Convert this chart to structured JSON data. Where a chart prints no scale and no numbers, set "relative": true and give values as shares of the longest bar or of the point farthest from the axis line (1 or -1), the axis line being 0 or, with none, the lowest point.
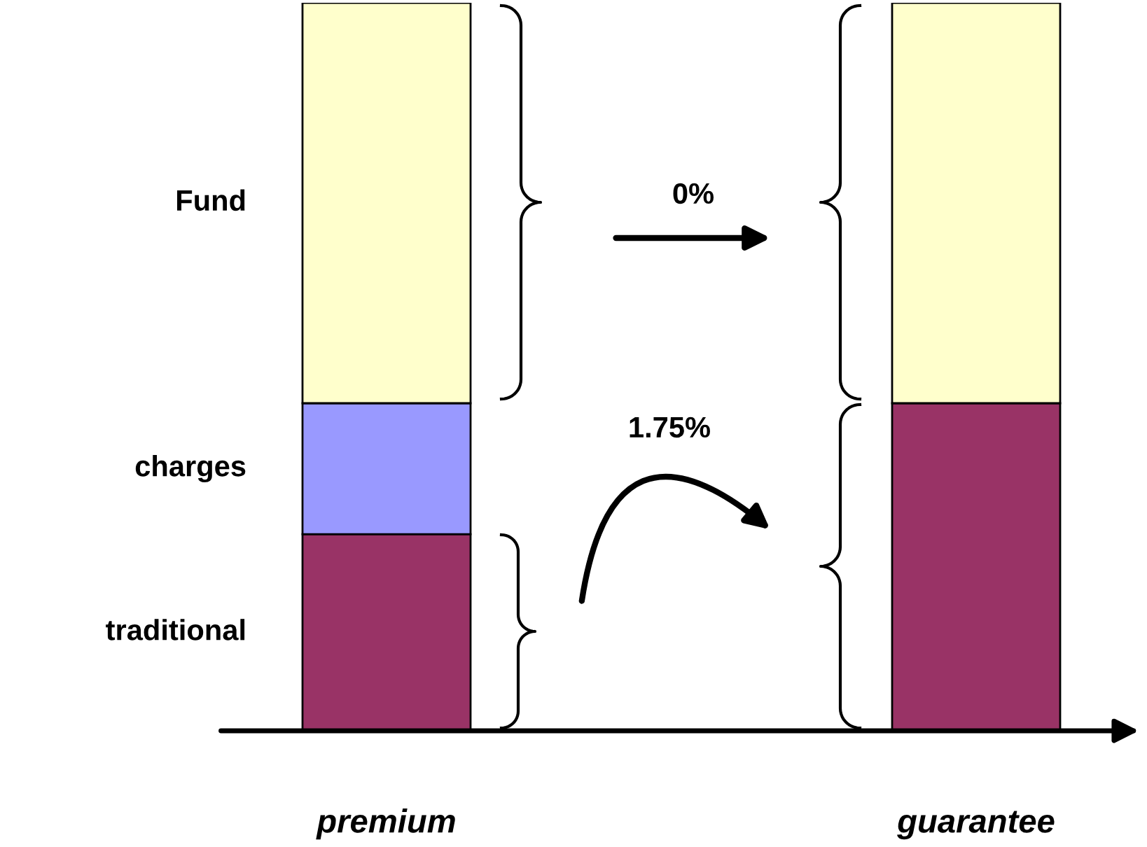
{
  "chart_data": {
    "type": "bar",
    "stacked": true,
    "relative": true,
    "categories": [
      "premium",
      "guarantee"
    ],
    "series": [
      {
        "name": "traditional",
        "color": "#993366",
        "values": [
          0.27,
          0.45
        ]
      },
      {
        "name": "charges",
        "color": "#9999ff",
        "values": [
          0.18,
          null
        ]
      },
      {
        "name": "Fund",
        "color": "#ffffcc",
        "values": [
          0.55,
          0.55
        ]
      }
    ],
    "annotations": [
      "0%",
      "1.75%"
    ]
  }
}
